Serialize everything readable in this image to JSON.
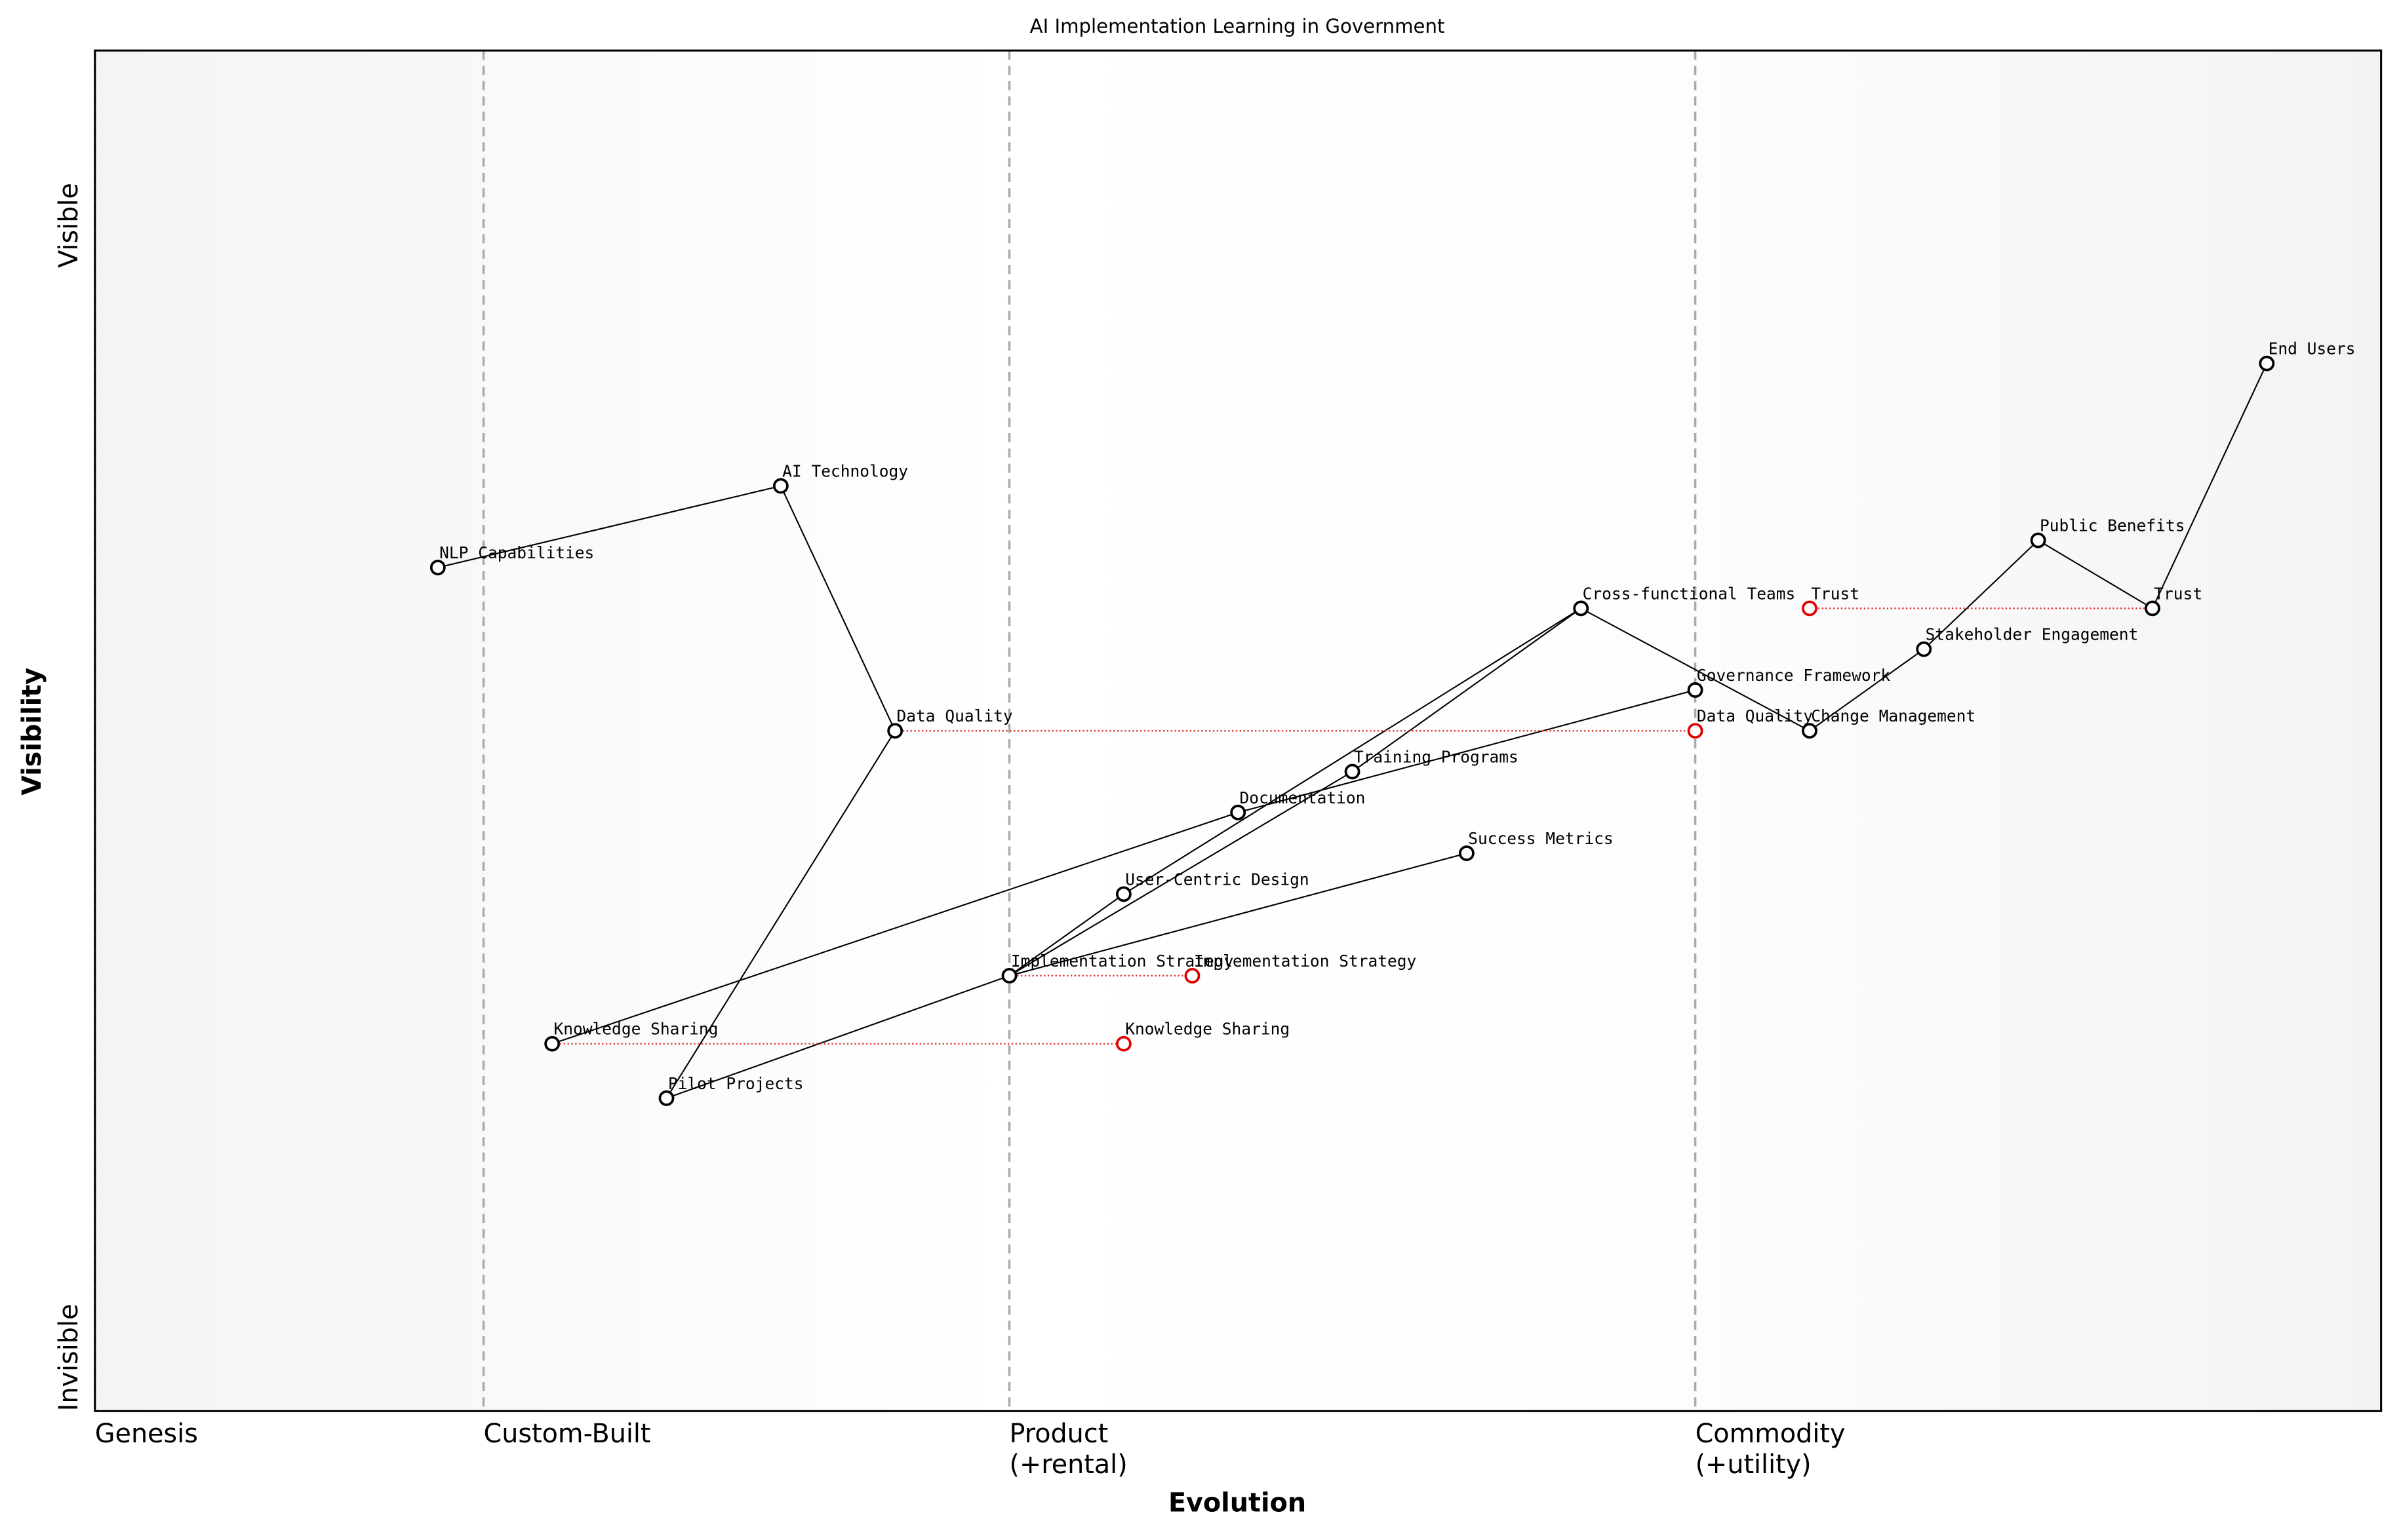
{
  "chart_data": {
    "type": "wardley",
    "title": "AI Implementation Learning in Government",
    "x_label": "Evolution",
    "y_label": "Visibility",
    "xlim": [
      0,
      1
    ],
    "ylim": [
      0,
      1
    ],
    "xticks": [
      {
        "value": 0,
        "label": [
          "Genesis"
        ]
      },
      {
        "value": 0.17,
        "label": [
          "Custom-Built"
        ]
      },
      {
        "value": 0.4,
        "label": [
          "Product",
          "(+rental)"
        ]
      },
      {
        "value": 0.7,
        "label": [
          "Commodity",
          "(+utility)"
        ]
      }
    ],
    "visibility_labels": [
      "Invisible",
      "Visible"
    ],
    "components": [
      {
        "name": "End Users",
        "x": 0.95,
        "y": 0.77
      },
      {
        "name": "AI Technology",
        "x": 0.3,
        "y": 0.68
      },
      {
        "name": "NLP Capabilities",
        "x": 0.15,
        "y": 0.62
      },
      {
        "name": "Data Quality",
        "x": 0.35,
        "y": 0.5
      },
      {
        "name": "Public Benefits",
        "x": 0.85,
        "y": 0.64
      },
      {
        "name": "Trust",
        "x": 0.9,
        "y": 0.59
      },
      {
        "name": "Cross-functional Teams",
        "x": 0.65,
        "y": 0.59
      },
      {
        "name": "Stakeholder Engagement",
        "x": 0.8,
        "y": 0.56
      },
      {
        "name": "Governance Framework",
        "x": 0.7,
        "y": 0.53
      },
      {
        "name": "Change Management",
        "x": 0.75,
        "y": 0.5
      },
      {
        "name": "Training Programs",
        "x": 0.55,
        "y": 0.47
      },
      {
        "name": "Documentation",
        "x": 0.5,
        "y": 0.44
      },
      {
        "name": "Success Metrics",
        "x": 0.6,
        "y": 0.41
      },
      {
        "name": "User-Centric Design",
        "x": 0.45,
        "y": 0.38
      },
      {
        "name": "Implementation Strategy",
        "x": 0.4,
        "y": 0.32
      },
      {
        "name": "Knowledge Sharing",
        "x": 0.2,
        "y": 0.27
      },
      {
        "name": "Pilot Projects",
        "x": 0.25,
        "y": 0.23
      }
    ],
    "links": [
      [
        "End Users",
        "Trust"
      ],
      [
        "Trust",
        "Public Benefits"
      ],
      [
        "Public Benefits",
        "Stakeholder Engagement"
      ],
      [
        "Stakeholder Engagement",
        "Change Management"
      ],
      [
        "Change Management",
        "Cross-functional Teams"
      ],
      [
        "Cross-functional Teams",
        "Training Programs"
      ],
      [
        "Training Programs",
        "Implementation Strategy"
      ],
      [
        "Cross-functional Teams",
        "User-Centric Design"
      ],
      [
        "User-Centric Design",
        "Implementation Strategy"
      ],
      [
        "Implementation Strategy",
        "Success Metrics"
      ],
      [
        "Implementation Strategy",
        "Pilot Projects"
      ],
      [
        "Pilot Projects",
        "Data Quality"
      ],
      [
        "Data Quality",
        "AI Technology"
      ],
      [
        "AI Technology",
        "NLP Capabilities"
      ],
      [
        "Knowledge Sharing",
        "Documentation"
      ],
      [
        "Documentation",
        "Governance Framework"
      ]
    ],
    "evolutions": [
      {
        "name": "Data Quality",
        "x": 0.7
      },
      {
        "name": "Trust",
        "x": 0.75
      },
      {
        "name": "Implementation Strategy",
        "x": 0.48
      },
      {
        "name": "Knowledge Sharing",
        "x": 0.45
      }
    ]
  }
}
